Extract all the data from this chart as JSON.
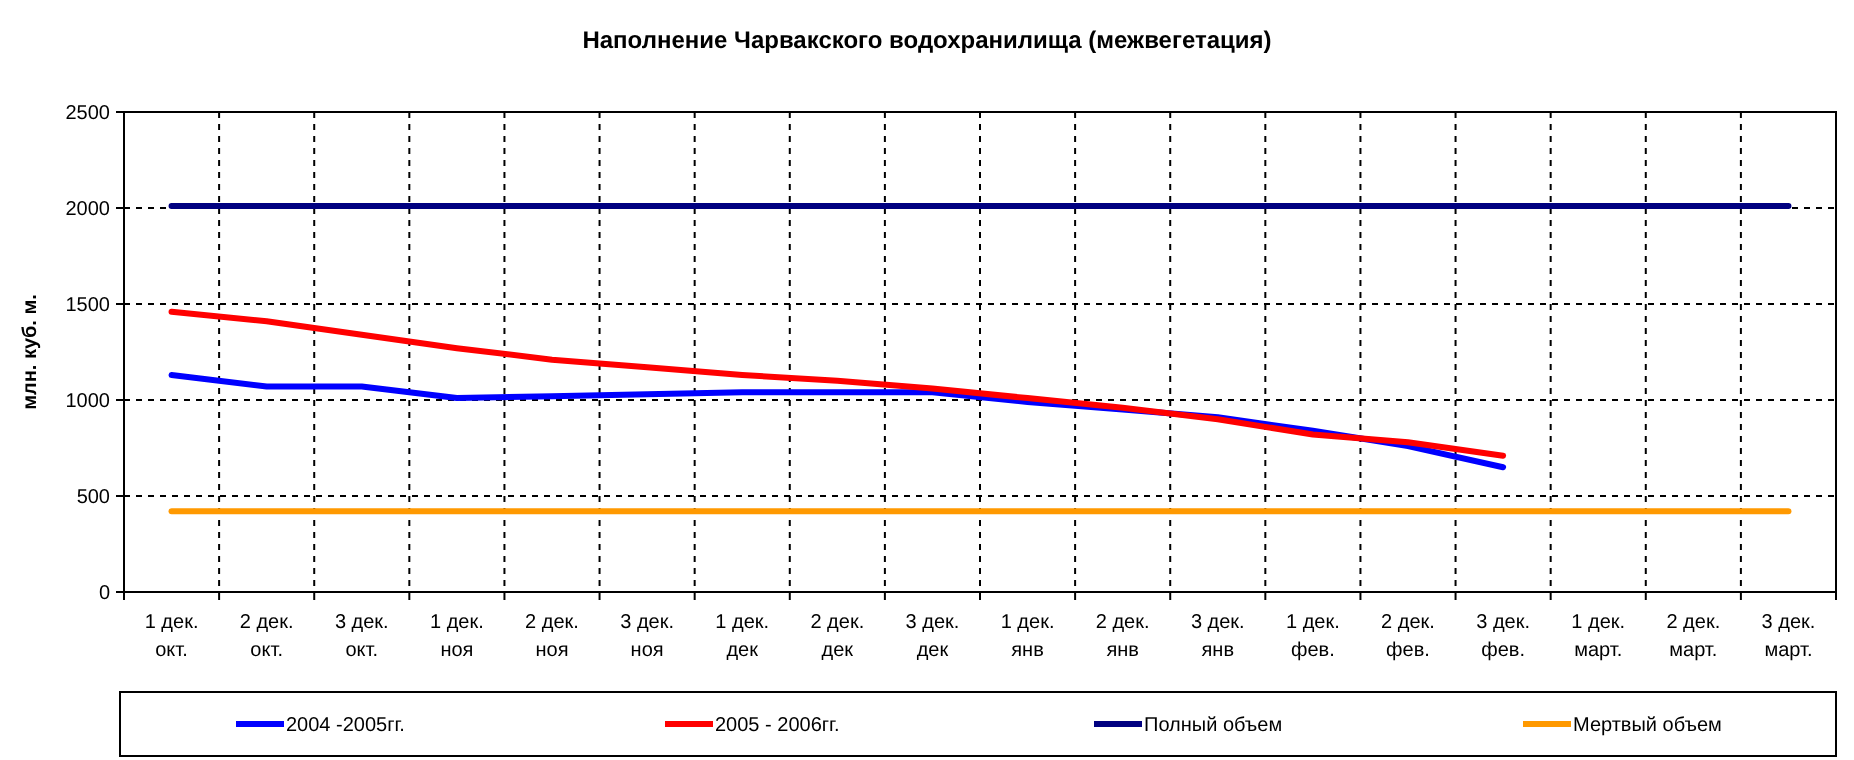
{
  "chart_data": {
    "type": "line",
    "title": "Наполнение Чарвакского водохранилища  (межвегетация)",
    "ylabel": "млн. куб. м.",
    "categories": [
      "1 дек.\nокт.",
      "2 дек.\nокт.",
      "3 дек.\nокт.",
      "1 дек.\nноя",
      "2 дек.\nноя",
      "3 дек.\nноя",
      "1 дек.\nдек",
      "2 дек.\nдек",
      "3 дек.\nдек",
      "1 дек.\nянв",
      "2 дек.\nянв",
      "3 дек.\nянв",
      "1 дек.\nфев.",
      "2 дек.\nфев.",
      "3 дек.\nфев.",
      "1 дек.\nмарт.",
      "2 дек.\nмарт.",
      "3 дек.\nмарт."
    ],
    "series": [
      {
        "name": "2004 -2005гг.",
        "color": "#0000ff",
        "values": [
          1130,
          1070,
          1070,
          1010,
          1020,
          1030,
          1040,
          1040,
          1040,
          990,
          950,
          910,
          840,
          760,
          650,
          null,
          null,
          null
        ]
      },
      {
        "name": "2005 - 2006гг.",
        "color": "#ff0000",
        "values": [
          1460,
          1410,
          1340,
          1270,
          1210,
          1170,
          1130,
          1100,
          1060,
          1010,
          960,
          900,
          820,
          780,
          710,
          null,
          null,
          null
        ]
      },
      {
        "name": "Полный объем",
        "color": "#000080",
        "values": [
          2010,
          2010,
          2010,
          2010,
          2010,
          2010,
          2010,
          2010,
          2010,
          2010,
          2010,
          2010,
          2010,
          2010,
          2010,
          2010,
          2010,
          2010
        ]
      },
      {
        "name": "Мертвый объем",
        "color": "#ff9900",
        "values": [
          420,
          420,
          420,
          420,
          420,
          420,
          420,
          420,
          420,
          420,
          420,
          420,
          420,
          420,
          420,
          420,
          420,
          420
        ]
      }
    ],
    "ylim": [
      0,
      2500
    ],
    "yticks": [
      0,
      500,
      1000,
      1500,
      2000,
      2500
    ],
    "grid": true,
    "legend": "bottom",
    "marker": "none",
    "line_style": "solid"
  }
}
